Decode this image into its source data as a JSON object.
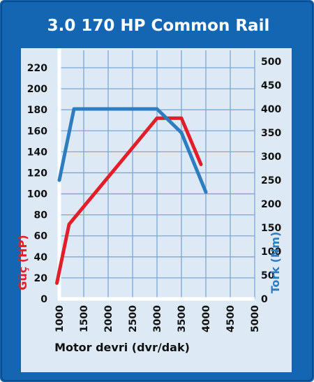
{
  "colors": {
    "frame": "#1566b2",
    "plot_bg": "#dde9f5",
    "grid": "#7da7d4",
    "power": "#e31e2a",
    "torque": "#2e7dc0",
    "text": "#111111"
  },
  "chart_data": {
    "type": "line",
    "title": "3.0 170 HP Common Rail",
    "xlabel": "Motor devri (dvr/dak)",
    "ylabel_left": "Güç (HP)",
    "ylabel_right": "Tork (Nm)",
    "xlim": [
      1000,
      5000
    ],
    "ylim_left": [
      0,
      220
    ],
    "ylim_right": [
      0,
      500
    ],
    "x_ticks": [
      "1000",
      "1500",
      "2000",
      "2500",
      "3000",
      "3500",
      "4000",
      "4500",
      "5000"
    ],
    "y_left_ticks": [
      "0",
      "20",
      "40",
      "60",
      "80",
      "100",
      "120",
      "140",
      "160",
      "180",
      "200",
      "220"
    ],
    "y_right_ticks": [
      "0",
      "50",
      "100",
      "150",
      "200",
      "250",
      "300",
      "350",
      "400",
      "450",
      "500"
    ],
    "grid": true,
    "series": [
      {
        "name": "Güç (HP)",
        "axis": "left",
        "color": "#e31e2a",
        "points": [
          [
            950,
            15
          ],
          [
            1200,
            71
          ],
          [
            3000,
            172
          ],
          [
            3500,
            172
          ],
          [
            3900,
            128
          ]
        ]
      },
      {
        "name": "Tork (Nm)",
        "axis": "right",
        "color": "#2e7dc0",
        "points": [
          [
            1000,
            250
          ],
          [
            1300,
            400
          ],
          [
            3000,
            400
          ],
          [
            3500,
            350
          ],
          [
            4000,
            225
          ]
        ]
      }
    ]
  }
}
